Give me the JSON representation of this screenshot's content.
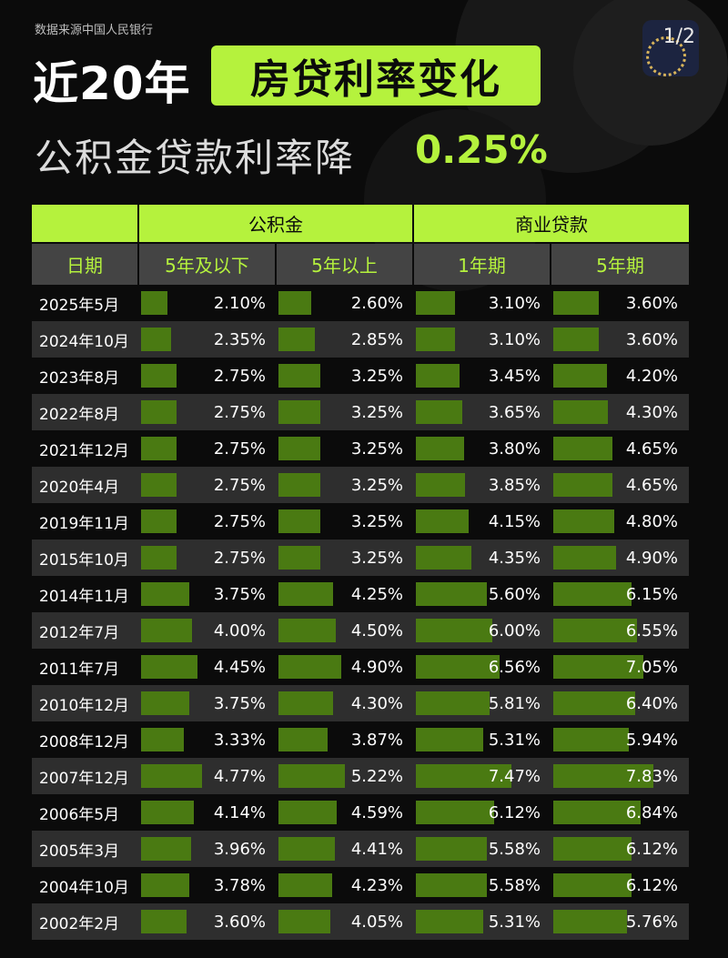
{
  "source": "数据来源中国人民银行",
  "page_indicator": "1/2",
  "title": {
    "prefix": "近20年",
    "highlight": "房贷利率变化"
  },
  "subtitle": {
    "text": "公积金贷款利率降",
    "value": "0.25%"
  },
  "colors": {
    "accent": "#b5f23d",
    "bar": "#4a7a12",
    "background": "#0b0b0b",
    "row_alt": "#2e2e2e"
  },
  "chart_data": {
    "type": "table",
    "groups": [
      "公积金",
      "商业贷款"
    ],
    "date_header": "日期",
    "columns": [
      "5年及以下",
      "5年以上",
      "1年期",
      "5年期"
    ],
    "rows": [
      {
        "date": "2025年5月",
        "values": [
          2.1,
          2.6,
          3.1,
          3.6
        ],
        "labels": [
          "2.10%",
          "2.60%",
          "3.10%",
          "3.60%"
        ]
      },
      {
        "date": "2024年10月",
        "values": [
          2.35,
          2.85,
          3.1,
          3.6
        ],
        "labels": [
          "2.35%",
          "2.85%",
          "3.10%",
          "3.60%"
        ]
      },
      {
        "date": "2023年8月",
        "values": [
          2.75,
          3.25,
          3.45,
          4.2
        ],
        "labels": [
          "2.75%",
          "3.25%",
          "3.45%",
          "4.20%"
        ]
      },
      {
        "date": "2022年8月",
        "values": [
          2.75,
          3.25,
          3.65,
          4.3
        ],
        "labels": [
          "2.75%",
          "3.25%",
          "3.65%",
          "4.30%"
        ]
      },
      {
        "date": "2021年12月",
        "values": [
          2.75,
          3.25,
          3.8,
          4.65
        ],
        "labels": [
          "2.75%",
          "3.25%",
          "3.80%",
          "4.65%"
        ]
      },
      {
        "date": "2020年4月",
        "values": [
          2.75,
          3.25,
          3.85,
          4.65
        ],
        "labels": [
          "2.75%",
          "3.25%",
          "3.85%",
          "4.65%"
        ]
      },
      {
        "date": "2019年11月",
        "values": [
          2.75,
          3.25,
          4.15,
          4.8
        ],
        "labels": [
          "2.75%",
          "3.25%",
          "4.15%",
          "4.80%"
        ]
      },
      {
        "date": "2015年10月",
        "values": [
          2.75,
          3.25,
          4.35,
          4.9
        ],
        "labels": [
          "2.75%",
          "3.25%",
          "4.35%",
          "4.90%"
        ]
      },
      {
        "date": "2014年11月",
        "values": [
          3.75,
          4.25,
          5.6,
          6.15
        ],
        "labels": [
          "3.75%",
          "4.25%",
          "5.60%",
          "6.15%"
        ]
      },
      {
        "date": "2012年7月",
        "values": [
          4.0,
          4.5,
          6.0,
          6.55
        ],
        "labels": [
          "4.00%",
          "4.50%",
          "6.00%",
          "6.55%"
        ]
      },
      {
        "date": "2011年7月",
        "values": [
          4.45,
          4.9,
          6.56,
          7.05
        ],
        "labels": [
          "4.45%",
          "4.90%",
          "6.56%",
          "7.05%"
        ]
      },
      {
        "date": "2010年12月",
        "values": [
          3.75,
          4.3,
          5.81,
          6.4
        ],
        "labels": [
          "3.75%",
          "4.30%",
          "5.81%",
          "6.40%"
        ]
      },
      {
        "date": "2008年12月",
        "values": [
          3.33,
          3.87,
          5.31,
          5.94
        ],
        "labels": [
          "3.33%",
          "3.87%",
          "5.31%",
          "5.94%"
        ]
      },
      {
        "date": "2007年12月",
        "values": [
          4.77,
          5.22,
          7.47,
          7.83
        ],
        "labels": [
          "4.77%",
          "5.22%",
          "7.47%",
          "7.83%"
        ]
      },
      {
        "date": "2006年5月",
        "values": [
          4.14,
          4.59,
          6.12,
          6.84
        ],
        "labels": [
          "4.14%",
          "4.59%",
          "6.12%",
          "6.84%"
        ]
      },
      {
        "date": "2005年3月",
        "values": [
          3.96,
          4.41,
          5.58,
          6.12
        ],
        "labels": [
          "3.96%",
          "4.41%",
          "5.58%",
          "6.12%"
        ]
      },
      {
        "date": "2004年10月",
        "values": [
          3.78,
          4.23,
          5.58,
          6.12
        ],
        "labels": [
          "3.78%",
          "4.23%",
          "5.58%",
          "6.12%"
        ]
      },
      {
        "date": "2002年2月",
        "values": [
          3.6,
          4.05,
          5.31,
          5.76
        ],
        "labels": [
          "3.60%",
          "4.05%",
          "5.31%",
          "5.76%"
        ]
      }
    ]
  }
}
